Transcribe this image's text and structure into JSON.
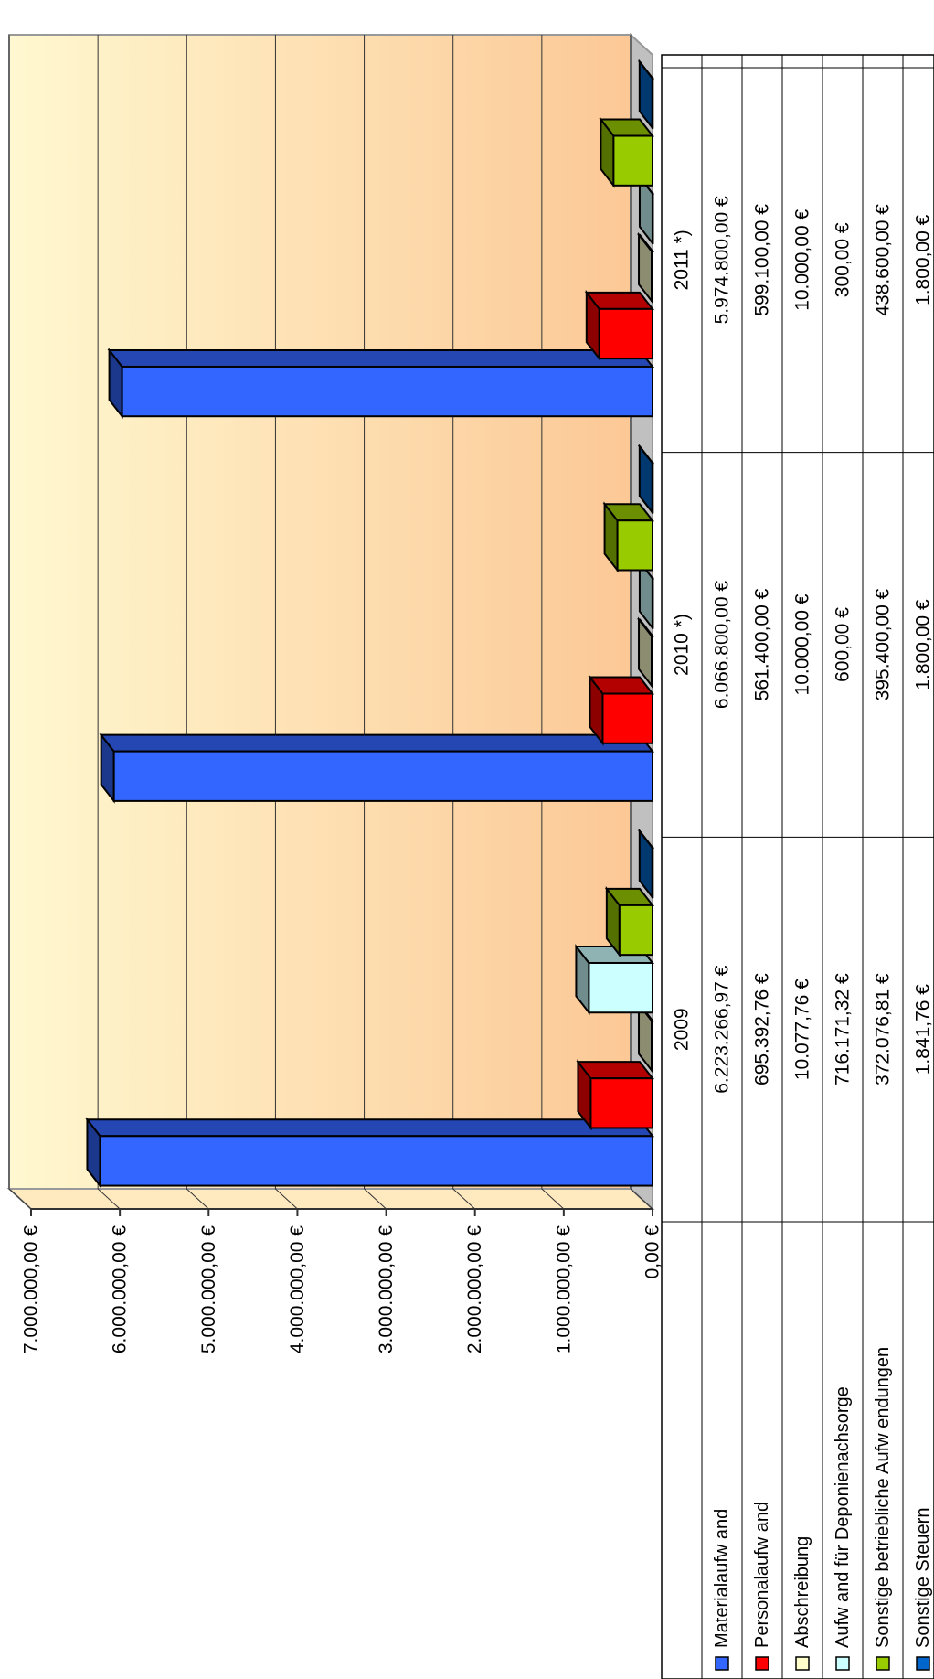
{
  "chart_data": {
    "type": "bar",
    "orientation": "rotated-90",
    "three_d": true,
    "categories": [
      "2009",
      "2010 *)",
      "2011 *)"
    ],
    "series": [
      {
        "name": "Materialaufw and",
        "color": "#3366ff",
        "values": [
          6223266.97,
          6066800.0,
          5974800.0
        ],
        "labels": [
          "6.223.266,97 €",
          "6.066.800,00 €",
          "5.974.800,00 €"
        ]
      },
      {
        "name": "Personalaufw and",
        "color": "#ff0000",
        "values": [
          695392.76,
          561400.0,
          599100.0
        ],
        "labels": [
          "695.392,76 €",
          "561.400,00 €",
          "599.100,00 €"
        ]
      },
      {
        "name": "Abschreibung",
        "color": "#ffffcc",
        "values": [
          10077.76,
          10000.0,
          10000.0
        ],
        "labels": [
          "10.077,76 €",
          "10.000,00 €",
          "10.000,00 €"
        ]
      },
      {
        "name": "Aufw and für Deponienachsorge",
        "color": "#ccffff",
        "values": [
          716171.32,
          600.0,
          300.0
        ],
        "labels": [
          "716.171,32 €",
          "600,00 €",
          "300,00 €"
        ]
      },
      {
        "name": "Sonstige betriebliche Aufw endungen",
        "color": "#99cc00",
        "values": [
          372076.81,
          395400.0,
          438600.0
        ],
        "labels": [
          "372.076,81 €",
          "395.400,00 €",
          "438.600,00 €"
        ]
      },
      {
        "name": "Sonstige Steuern",
        "color": "#0066cc",
        "values": [
          1841.76,
          1800.0,
          1800.0
        ],
        "labels": [
          "1.841,76 €",
          "1.800,00 €",
          "1.800,00 €"
        ]
      }
    ],
    "ylim": [
      0,
      7000000
    ],
    "yticks": [
      {
        "value": 0,
        "label": "0,00 €"
      },
      {
        "value": 1000000,
        "label": "1.000.000,00 €"
      },
      {
        "value": 2000000,
        "label": "2.000.000,00 €"
      },
      {
        "value": 3000000,
        "label": "3.000.000,00 €"
      },
      {
        "value": 4000000,
        "label": "4.000.000,00 €"
      },
      {
        "value": 5000000,
        "label": "5.000.000,00 €"
      },
      {
        "value": 6000000,
        "label": "6.000.000,00 €"
      },
      {
        "value": 7000000,
        "label": "7.000.000,00 €"
      }
    ],
    "grid": true,
    "data_table": true,
    "background": {
      "light": "#fff8d0",
      "dark": "#fcc896"
    }
  }
}
